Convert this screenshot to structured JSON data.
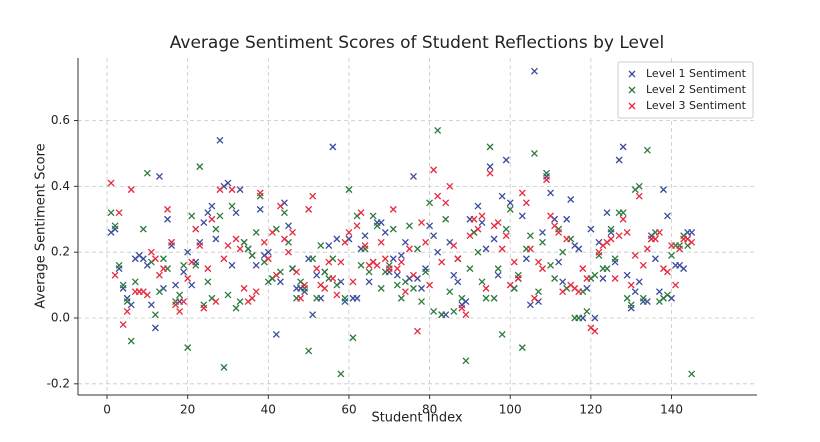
{
  "chart_data": {
    "type": "scatter",
    "title": "Average Sentiment Scores of Student Reflections by Level",
    "x_label": "Student Index",
    "y_label": "Average Sentiment Score",
    "x": [
      1,
      2,
      3,
      4,
      5,
      6,
      7,
      8,
      9,
      10,
      11,
      12,
      13,
      14,
      15,
      16,
      17,
      18,
      19,
      20,
      21,
      22,
      23,
      24,
      25,
      26,
      27,
      28,
      29,
      30,
      31,
      32,
      33,
      34,
      35,
      36,
      37,
      38,
      39,
      40,
      41,
      42,
      43,
      44,
      45,
      46,
      47,
      48,
      49,
      50,
      51,
      52,
      53,
      54,
      55,
      56,
      57,
      58,
      59,
      60,
      61,
      62,
      63,
      64,
      65,
      66,
      67,
      68,
      69,
      70,
      71,
      72,
      73,
      74,
      75,
      76,
      77,
      78,
      79,
      80,
      81,
      82,
      83,
      84,
      85,
      86,
      87,
      88,
      89,
      90,
      91,
      92,
      93,
      94,
      95,
      96,
      97,
      98,
      99,
      100,
      101,
      102,
      103,
      104,
      105,
      106,
      107,
      108,
      109,
      110,
      111,
      112,
      113,
      114,
      115,
      116,
      117,
      118,
      119,
      120,
      121,
      122,
      123,
      124,
      125,
      126,
      127,
      128,
      129,
      130,
      131,
      132,
      133,
      134,
      135,
      136,
      137,
      138,
      139,
      140,
      141,
      142,
      143,
      144,
      145
    ],
    "series": [
      {
        "name": "Level 1 Sentiment",
        "color": "#3a4a9c",
        "values": [
          0.26,
          0.27,
          0.15,
          0.09,
          0.06,
          0.04,
          0.18,
          0.19,
          0.18,
          0.16,
          0.04,
          -0.03,
          0.43,
          0.09,
          0.3,
          0.22,
          0.1,
          0.05,
          0.14,
          0.2,
          0.1,
          0.17,
          0.23,
          0.29,
          0.32,
          0.34,
          0.24,
          0.54,
          0.4,
          0.41,
          0.16,
          0.32,
          0.39,
          0.23,
          0.21,
          0.19,
          0.16,
          0.33,
          0.19,
          0.2,
          0.12,
          -0.05,
          0.11,
          0.35,
          0.28,
          0.15,
          0.09,
          0.09,
          0.08,
          0.18,
          0.01,
          0.13,
          0.06,
          0.14,
          0.22,
          0.52,
          0.24,
          0.11,
          0.05,
          0.24,
          0.06,
          0.06,
          0.21,
          0.25,
          0.11,
          0.17,
          0.29,
          0.29,
          0.26,
          0.14,
          0.18,
          0.13,
          0.19,
          0.23,
          0.12,
          0.43,
          0.12,
          0.09,
          0.15,
          0.28,
          0.25,
          0.2,
          0.01,
          0.01,
          0.23,
          0.13,
          0.11,
          0.04,
          0.05,
          0.3,
          0.26,
          0.34,
          0.29,
          0.21,
          0.46,
          0.24,
          0.13,
          0.37,
          0.48,
          0.35,
          0.09,
          0.12,
          0.31,
          0.18,
          0.04,
          0.75,
          0.05,
          0.26,
          0.43,
          0.38,
          0.3,
          0.17,
          0.11,
          0.3,
          0.36,
          0.22,
          0.21,
          0.0,
          0.09,
          0.27,
          0.0,
          0.23,
          0.12,
          0.32,
          0.26,
          0.17,
          0.48,
          0.52,
          0.13,
          0.03,
          0.08,
          0.11,
          0.05,
          0.05,
          0.25,
          0.18,
          0.08,
          0.39,
          0.31,
          0.06,
          0.16,
          0.16,
          0.15,
          0.26,
          0.26
        ]
      },
      {
        "name": "Level 2 Sentiment",
        "color": "#2b7a3b",
        "values": [
          0.32,
          0.28,
          0.16,
          0.1,
          0.05,
          -0.07,
          0.11,
          0.08,
          0.27,
          0.44,
          0.17,
          0.01,
          0.08,
          0.18,
          0.15,
          0.23,
          0.05,
          0.07,
          0.16,
          -0.09,
          0.31,
          0.16,
          0.46,
          0.04,
          0.11,
          0.06,
          0.27,
          0.31,
          -0.15,
          0.07,
          0.34,
          0.03,
          0.05,
          0.23,
          0.21,
          0.19,
          0.26,
          0.37,
          0.17,
          0.11,
          0.12,
          0.27,
          0.14,
          0.32,
          0.23,
          0.15,
          0.06,
          0.11,
          0.09,
          -0.1,
          0.18,
          0.06,
          0.22,
          0.14,
          0.12,
          0.18,
          0.1,
          -0.17,
          0.06,
          0.39,
          -0.06,
          0.31,
          0.16,
          0.21,
          0.14,
          0.31,
          0.28,
          0.09,
          0.14,
          0.16,
          0.27,
          0.1,
          0.06,
          0.11,
          0.28,
          0.09,
          0.21,
          0.05,
          0.14,
          0.35,
          0.02,
          0.57,
          0.01,
          0.3,
          0.08,
          0.02,
          0.18,
          0.06,
          -0.13,
          0.15,
          0.26,
          0.2,
          0.11,
          0.06,
          0.52,
          0.06,
          0.15,
          -0.05,
          0.27,
          0.33,
          0.09,
          0.13,
          -0.09,
          0.21,
          0.25,
          0.5,
          0.08,
          0.23,
          0.44,
          0.16,
          0.12,
          0.27,
          0.2,
          0.09,
          0.24,
          0.0,
          0.0,
          0.08,
          0.02,
          0.12,
          0.13,
          0.19,
          0.15,
          0.15,
          0.27,
          0.18,
          0.32,
          0.32,
          0.06,
          0.04,
          0.39,
          0.4,
          0.06,
          0.51,
          0.24,
          0.26,
          0.05,
          0.06,
          0.07,
          0.19,
          0.22,
          0.22,
          0.25,
          0.22,
          -0.17
        ]
      },
      {
        "name": "Level 3 Sentiment",
        "color": "#e8283c",
        "values": [
          0.41,
          0.13,
          0.32,
          -0.02,
          0.02,
          0.39,
          0.08,
          0.08,
          0.08,
          0.07,
          0.2,
          0.18,
          0.13,
          0.15,
          0.33,
          0.23,
          0.04,
          0.02,
          0.05,
          0.12,
          0.17,
          0.27,
          0.22,
          0.03,
          0.15,
          0.3,
          0.05,
          0.39,
          0.18,
          0.22,
          0.39,
          0.24,
          0.21,
          0.09,
          0.05,
          0.06,
          0.08,
          0.38,
          0.23,
          0.18,
          0.26,
          0.13,
          0.34,
          0.24,
          0.2,
          0.26,
          0.14,
          0.06,
          0.1,
          0.33,
          0.37,
          0.15,
          0.1,
          0.09,
          0.17,
          0.12,
          0.07,
          0.17,
          0.23,
          0.26,
          0.11,
          0.28,
          0.32,
          0.22,
          0.16,
          0.17,
          0.16,
          0.23,
          0.18,
          0.15,
          0.33,
          0.15,
          0.17,
          0.08,
          0.21,
          0.13,
          -0.04,
          0.29,
          0.23,
          0.1,
          0.45,
          0.37,
          0.17,
          0.35,
          0.4,
          0.22,
          0.18,
          0.03,
          0.01,
          0.25,
          0.3,
          0.27,
          0.31,
          0.09,
          0.44,
          0.28,
          0.29,
          0.21,
          0.25,
          0.1,
          0.17,
          0.12,
          0.38,
          0.35,
          0.21,
          0.06,
          0.17,
          0.15,
          0.42,
          0.31,
          0.28,
          0.26,
          0.08,
          0.24,
          0.1,
          0.09,
          0.08,
          0.15,
          0.12,
          -0.03,
          -0.04,
          0.2,
          0.22,
          0.23,
          0.24,
          0.12,
          0.25,
          0.3,
          0.26,
          0.1,
          0.19,
          0.37,
          0.16,
          0.21,
          0.24,
          0.24,
          0.26,
          0.15,
          0.14,
          0.22,
          0.1,
          0.21,
          0.24,
          0.24,
          0.23
        ]
      }
    ],
    "xlim": [
      -7.2,
      161.2
    ],
    "ylim": [
      -0.234,
      0.79
    ],
    "xticks": [
      0,
      20,
      40,
      60,
      80,
      100,
      120,
      140
    ],
    "yticks": [
      -0.2,
      {
        "value": 0,
        "label": "0.0"
      },
      0.2,
      0.4,
      0.6
    ],
    "grid": true,
    "legend": "upper right"
  }
}
